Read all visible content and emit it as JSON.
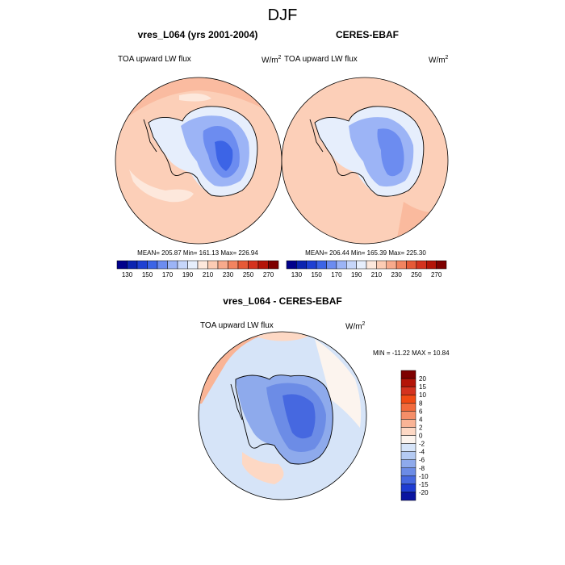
{
  "figure": {
    "title": "DJF"
  },
  "panels": {
    "model": {
      "title": "vres_L064 (yrs 2001-2004)",
      "variable": "TOA upward LW flux",
      "units_base": "W/m",
      "units_exp": "2",
      "stats": "MEAN= 205.87  Min= 161.13  Max= 226.94"
    },
    "obs": {
      "title": "CERES-EBAF",
      "variable": "TOA upward LW flux",
      "units_base": "W/m",
      "units_exp": "2",
      "stats": "MEAN= 206.44  Min= 165.39  Max= 225.30"
    },
    "diff": {
      "title": "vres_L064 - CERES-EBAF",
      "variable": "TOA upward LW flux",
      "units_base": "W/m",
      "units_exp": "2",
      "stats": "MIN = -11.22 MAX =  10.84"
    }
  },
  "chart_data": [
    {
      "type": "heatmap",
      "title": "vres_L064 (yrs 2001-2004)",
      "projection": "south polar stereographic",
      "mean": 205.87,
      "min": 161.13,
      "max": 226.94,
      "colorbar_levels": [
        130,
        140,
        150,
        160,
        170,
        180,
        190,
        200,
        210,
        220,
        230,
        240,
        250,
        260,
        270
      ],
      "colorbar_tick_labels": [
        "130",
        "150",
        "170",
        "190",
        "210",
        "230",
        "250",
        "270"
      ],
      "colors": [
        "#00008b",
        "#0b24b0",
        "#1e40d2",
        "#3c64e6",
        "#6c8cf0",
        "#9cb4f6",
        "#c6d6fa",
        "#e6eefc",
        "#fde8dc",
        "#fcccb4",
        "#f8aa8c",
        "#f28460",
        "#e65a37",
        "#d4321e",
        "#b41408",
        "#7e0000"
      ]
    },
    {
      "type": "heatmap",
      "title": "CERES-EBAF",
      "projection": "south polar stereographic",
      "mean": 206.44,
      "min": 165.39,
      "max": 225.3,
      "colorbar_levels": [
        130,
        140,
        150,
        160,
        170,
        180,
        190,
        200,
        210,
        220,
        230,
        240,
        250,
        260,
        270
      ],
      "colorbar_tick_labels": [
        "130",
        "150",
        "170",
        "190",
        "210",
        "230",
        "250",
        "270"
      ]
    },
    {
      "type": "heatmap",
      "title": "vres_L064 - CERES-EBAF",
      "projection": "south polar stereographic",
      "min": -11.22,
      "max": 10.84,
      "colorbar_levels": [
        -20,
        -15,
        -10,
        -8,
        -6,
        -4,
        -2,
        0,
        2,
        4,
        6,
        8,
        10,
        15,
        20
      ],
      "colorbar_tick_labels": [
        "20",
        "15",
        "10",
        "8",
        "6",
        "4",
        "2",
        "0",
        "-2",
        "-4",
        "-6",
        "-8",
        "-10",
        "-15",
        "-20"
      ],
      "colors": [
        "#7e0000",
        "#b41408",
        "#d4321e",
        "#f04a14",
        "#f26a3c",
        "#f58e68",
        "#f9b496",
        "#fdd8c4",
        "#fcf4ee",
        "#d6e4f8",
        "#b4caf2",
        "#8eaaec",
        "#6c8ce6",
        "#4668e0",
        "#1e3cd2",
        "#0a14a0"
      ]
    }
  ]
}
